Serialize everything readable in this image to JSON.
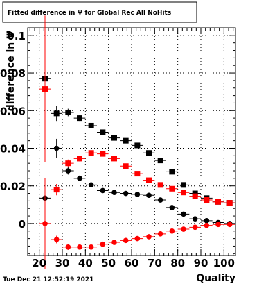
{
  "title": "Fitted difference in  Ψ  for Global Rec All NoHits",
  "timestamp": "Tue Dec 21 12:52:19 2021",
  "chart_data": {
    "type": "scatter",
    "title": "Fitted difference in  Ψ  for Global Rec All NoHits",
    "xlabel": "Quality",
    "ylabel": "difference in  Ψ",
    "xlim": [
      15,
      105
    ],
    "ylim": [
      -0.017,
      0.104
    ],
    "xticks": [
      20,
      30,
      40,
      50,
      60,
      70,
      80,
      90,
      100
    ],
    "xtick_labels": [
      "20",
      "30",
      "40",
      "50",
      "60",
      "70",
      "80",
      "90",
      "100"
    ],
    "yticks": [
      0,
      0.02,
      0.04,
      0.06,
      0.08,
      0.1
    ],
    "ytick_labels": [
      "0",
      "0.02",
      "0.04",
      "0.06",
      "0.08",
      "0.1"
    ],
    "grid": true,
    "x": [
      22.5,
      27.5,
      32.5,
      37.5,
      42.5,
      47.5,
      52.5,
      57.5,
      62.5,
      67.5,
      72.5,
      77.5,
      82.5,
      87.5,
      92.5,
      97.5,
      102.5
    ],
    "series": [
      {
        "marker": "square",
        "color": "#000000",
        "y": [
          0.077,
          0.0585,
          0.059,
          0.056,
          0.052,
          0.0485,
          0.0455,
          0.044,
          0.0415,
          0.0375,
          0.0335,
          0.0275,
          0.0205,
          0.016,
          0.0135,
          0.0115,
          0.011
        ],
        "yerr": [
          0.003,
          0.004,
          0.002,
          0.0015,
          0.001,
          0.001,
          0.001,
          0.001,
          0.001,
          0.001,
          0.001,
          0.001,
          0.001,
          0.001,
          0.001,
          0.001,
          0.001
        ]
      },
      {
        "marker": "square",
        "color": "#ff0000",
        "y": [
          0.0715,
          0.018,
          0.032,
          0.0345,
          0.0375,
          0.037,
          0.0345,
          0.0305,
          0.0265,
          0.023,
          0.0205,
          0.0185,
          0.0165,
          0.0145,
          0.0125,
          0.0115,
          0.011
        ],
        "yerr": [
          0.039,
          0.003,
          0.002,
          0.0015,
          0.001,
          0.001,
          0.001,
          0.001,
          0.001,
          0.001,
          0.001,
          0.001,
          0.001,
          0.001,
          0.001,
          0.001,
          0.001
        ]
      },
      {
        "marker": "circle",
        "color": "#000000",
        "y": [
          0.0135,
          0.04,
          0.028,
          0.024,
          0.0205,
          0.0175,
          0.0165,
          0.016,
          0.0155,
          0.015,
          0.0125,
          0.0085,
          0.005,
          0.0025,
          0.0015,
          0.0005,
          0.0
        ],
        "yerr": [
          0.004,
          0.005,
          0.002,
          0.0015,
          0.001,
          0.001,
          0.001,
          0.001,
          0.001,
          0.001,
          0.001,
          0.001,
          0.001,
          0.001,
          0.001,
          0.001,
          0.001
        ]
      },
      {
        "marker": "circle",
        "color": "#ff0000",
        "y": [
          0.0,
          -0.0085,
          -0.0125,
          -0.0125,
          -0.0125,
          -0.011,
          -0.01,
          -0.009,
          -0.008,
          -0.007,
          -0.0055,
          -0.004,
          -0.003,
          -0.002,
          -0.001,
          -0.0005,
          -0.0005
        ],
        "yerr": [
          0.024,
          0.002,
          0.0015,
          0.001,
          0.001,
          0.001,
          0.001,
          0.001,
          0.001,
          0.001,
          0.001,
          0.001,
          0.001,
          0.001,
          0.001,
          0.001,
          0.001
        ]
      }
    ]
  }
}
